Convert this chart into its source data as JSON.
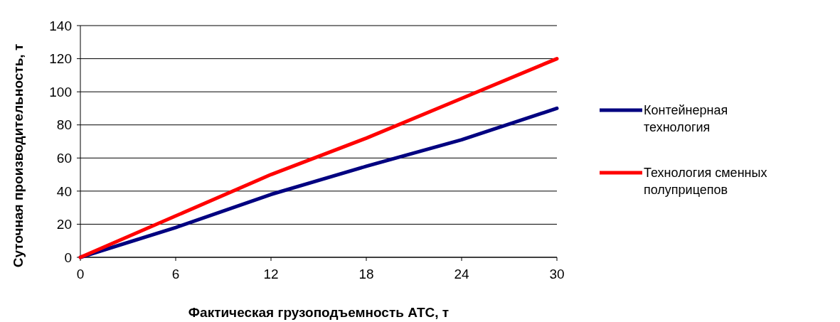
{
  "chart_data": {
    "type": "line",
    "xlabel": "Фактическая грузоподъемность АТС, т",
    "ylabel": "Суточная производительность, т",
    "x": [
      0,
      6,
      12,
      18,
      24,
      30
    ],
    "series": [
      {
        "name": "Контейнерная технология",
        "color": "#000080",
        "values": [
          0,
          18,
          38,
          55,
          71,
          90
        ]
      },
      {
        "name": "Технология сменных полуприцепов",
        "color": "#ff0000",
        "values": [
          0,
          25,
          50,
          72,
          96,
          120
        ]
      }
    ],
    "xlim": [
      0,
      30
    ],
    "xticks": [
      0,
      6,
      12,
      18,
      24,
      30
    ],
    "ylim": [
      0,
      140
    ],
    "yticks": [
      0,
      20,
      40,
      60,
      80,
      100,
      120,
      140
    ],
    "grid": "y",
    "legend": "right",
    "marker": "none",
    "line_style": "solid"
  }
}
